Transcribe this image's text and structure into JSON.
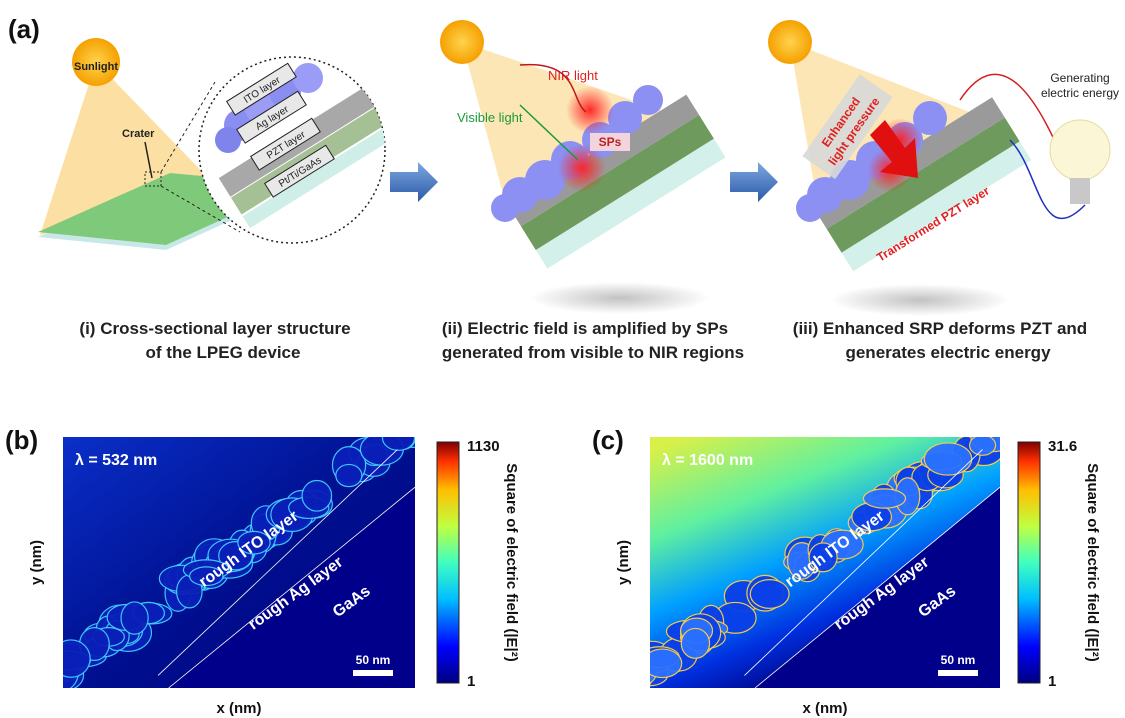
{
  "panel_a": {
    "label": "(a)",
    "sunlight": "Sunlight",
    "crater": "Crater",
    "layers": [
      "ITO layer",
      "Ag layer",
      "PZT layer",
      "Pt/Ti/GaAs"
    ],
    "nir_light": "NIR light",
    "visible_light": "Visible light",
    "sps": "SPs",
    "enhanced_pressure": [
      "Enhanced",
      "light pressure"
    ],
    "transformed": "Transformed PZT layer",
    "generating": [
      "Generating",
      "electric energy"
    ],
    "captions": [
      [
        "(i) Cross-sectional layer structure",
        "of the LPEG device"
      ],
      [
        "(ii) Electric field is amplified by SPs",
        "generated from visible to NIR regions"
      ],
      [
        "(iii) Enhanced SRP deforms PZT and",
        "generates electric energy"
      ]
    ]
  },
  "panel_b": {
    "label": "(b)",
    "wavelength": "λ = 532 nm",
    "ito": "rough ITO layer",
    "ag": "rough Ag layer",
    "substrate": "GaAs",
    "scale_bar": "50 nm",
    "x_label": "x (nm)",
    "y_label": "y (nm)",
    "colorbar_max": 1130,
    "colorbar_min": 1,
    "colorbar_label": "Square of electric field (|E|²)"
  },
  "panel_c": {
    "label": "(c)",
    "wavelength": "λ = 1600 nm",
    "ito": "rough ITO layer",
    "ag": "rough Ag layer",
    "substrate": "GaAs",
    "scale_bar": "50 nm",
    "x_label": "x (nm)",
    "y_label": "y (nm)",
    "colorbar_max": 31.6,
    "colorbar_min": 1,
    "colorbar_label": "Square of electric field (|E|²)"
  }
}
